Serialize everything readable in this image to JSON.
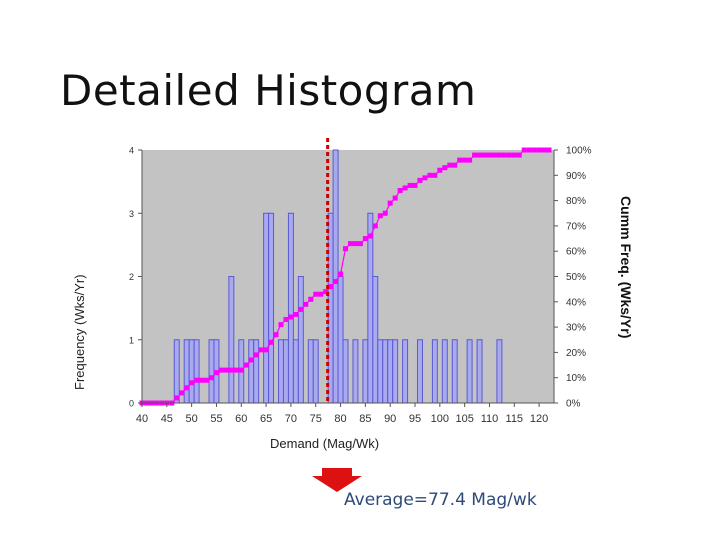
{
  "title": "Detailed Histogram",
  "average_label": "Average=77.4 Mag/wk",
  "colors": {
    "plot_bg": "#c3c3c3",
    "bar_fill": "#a9a9ef",
    "bar_stroke": "#5a5ad2",
    "cumulative": "#ff00ff",
    "average_line": "#cc0000",
    "arrow": "#dd1111"
  },
  "chart_data": {
    "type": "bar",
    "xlabel": "Demand (Mag/Wk)",
    "ylabel": "Frequency (Wks/Yr)",
    "y2label": "Cumm Freq. (Wks/Yr)",
    "xlim": [
      40,
      123
    ],
    "ylim": [
      0,
      4
    ],
    "y2lim": [
      0,
      100
    ],
    "grid": false,
    "x_ticks": [
      "40",
      "45",
      "50",
      "55",
      "60",
      "65",
      "70",
      "75",
      "80",
      "85",
      "90",
      "95",
      "100",
      "105",
      "110",
      "115",
      "120"
    ],
    "y_ticks": [
      "0",
      "1",
      "2",
      "3",
      "4"
    ],
    "y2_ticks": [
      "0%",
      "10%",
      "20%",
      "30%",
      "40%",
      "50%",
      "60%",
      "70%",
      "80%",
      "90%",
      "100%"
    ],
    "series": [
      {
        "type": "bar",
        "x": [
          47,
          49,
          50,
          51,
          54,
          55,
          58,
          60,
          62,
          63,
          65,
          66,
          68,
          69,
          70,
          71,
          72,
          74,
          75,
          78,
          79,
          80,
          81,
          83,
          85,
          86,
          87,
          88,
          89,
          90,
          91,
          93,
          96,
          99,
          101,
          103,
          106,
          108,
          112
        ],
        "values": [
          1,
          1,
          1,
          1,
          1,
          1,
          2,
          1,
          1,
          1,
          3,
          3,
          1,
          1,
          3,
          1,
          2,
          1,
          1,
          3,
          4,
          2,
          1,
          1,
          1,
          3,
          2,
          1,
          1,
          1,
          1,
          1,
          1,
          1,
          1,
          1,
          1,
          1,
          1
        ]
      },
      {
        "type": "line",
        "x": [
          40,
          41,
          42,
          43,
          44,
          45,
          46,
          47,
          48,
          49,
          50,
          51,
          52,
          53,
          54,
          55,
          56,
          57,
          58,
          59,
          60,
          61,
          62,
          63,
          64,
          65,
          66,
          67,
          68,
          69,
          70,
          71,
          72,
          73,
          74,
          75,
          76,
          77,
          78,
          79,
          80,
          81,
          82,
          83,
          84,
          85,
          86,
          87,
          88,
          89,
          90,
          91,
          92,
          93,
          94,
          95,
          96,
          97,
          98,
          99,
          100,
          101,
          102,
          103,
          104,
          105,
          106,
          107,
          108,
          109,
          110,
          111,
          112,
          113,
          114,
          115,
          116,
          117,
          118,
          119,
          120,
          121,
          122
        ],
        "values": [
          0,
          0,
          0,
          0,
          0,
          0,
          0,
          2,
          4,
          6,
          8,
          9,
          9,
          9,
          10,
          12,
          13,
          13,
          13,
          13,
          13,
          15,
          17,
          19,
          21,
          21,
          24,
          27,
          31,
          33,
          34,
          35,
          37,
          39,
          41,
          43,
          43,
          44,
          46,
          48,
          51,
          61,
          63,
          63,
          63,
          65,
          66,
          70,
          74,
          75,
          79,
          81,
          84,
          85,
          86,
          86,
          88,
          89,
          90,
          90,
          92,
          93,
          94,
          94,
          96,
          96,
          96,
          98,
          98,
          98,
          98,
          98,
          98,
          98,
          98,
          98,
          98,
          100,
          100,
          100,
          100,
          100,
          100
        ]
      }
    ],
    "annotations": [
      {
        "type": "vline",
        "x": 77.4
      }
    ]
  }
}
